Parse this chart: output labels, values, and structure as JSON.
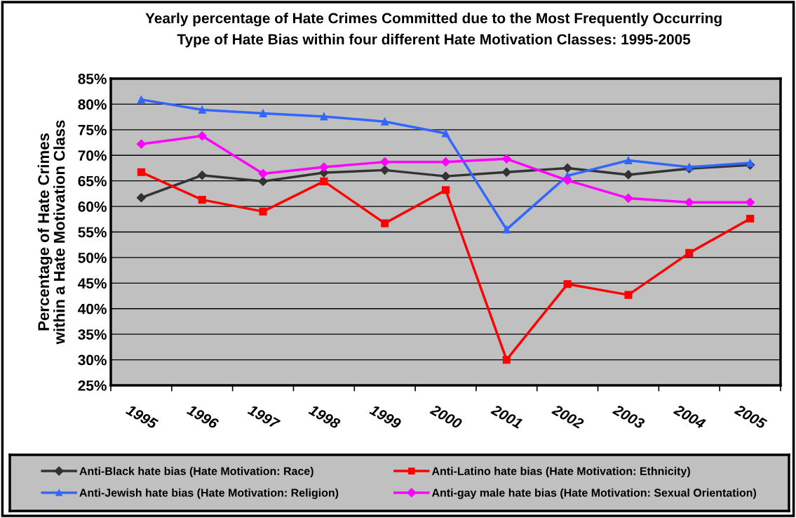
{
  "chart_data": {
    "type": "line",
    "title": "Yearly percentage of Hate Crimes Committed due to the Most Frequently Occurring\nType of Hate Bias within four different Hate Motivation Classes: 1995-2005",
    "ylabel": "Percentage of Hate Crimes\nwithin a Hate Motivation Class",
    "categories": [
      "1995",
      "1996",
      "1997",
      "1998",
      "1999",
      "2000",
      "2001",
      "2002",
      "2003",
      "2004",
      "2005"
    ],
    "series": [
      {
        "name": "Anti-Black hate bias (Hate Motivation: Race)",
        "color": "#333333",
        "marker": "diamond",
        "values": [
          61.7,
          66.1,
          64.9,
          66.6,
          67.1,
          65.9,
          66.7,
          67.5,
          66.2,
          67.4,
          68.1
        ]
      },
      {
        "name": "Anti-Latino hate bias (Hate Motivation: Ethnicity)",
        "color": "#ff0000",
        "marker": "square",
        "values": [
          66.7,
          61.3,
          59.0,
          64.9,
          56.7,
          63.2,
          30.0,
          44.8,
          42.7,
          50.9,
          57.6
        ]
      },
      {
        "name": "Anti-Jewish hate bias (Hate Motivation: Religion)",
        "color": "#3366ff",
        "marker": "triangle",
        "values": [
          80.9,
          78.9,
          78.2,
          77.6,
          76.6,
          74.3,
          55.5,
          66.0,
          69.0,
          67.7,
          68.5
        ]
      },
      {
        "name": "Anti-gay male hate bias (Hate Motivation: Sexual Orientation)",
        "color": "#ff00ff",
        "marker": "diamond",
        "values": [
          72.2,
          73.8,
          66.4,
          67.7,
          68.7,
          68.7,
          69.3,
          65.1,
          61.6,
          60.8,
          60.8
        ]
      }
    ],
    "ylim": [
      25,
      85
    ],
    "yticks": [
      {
        "value": 25,
        "label": "25%"
      },
      {
        "value": 30,
        "label": "30%"
      },
      {
        "value": 35,
        "label": "35%"
      },
      {
        "value": 40,
        "label": "40%"
      },
      {
        "value": 45,
        "label": "45%"
      },
      {
        "value": 50,
        "label": "50%"
      },
      {
        "value": 55,
        "label": "55%"
      },
      {
        "value": 60,
        "label": "60%"
      },
      {
        "value": 65,
        "label": "65%"
      },
      {
        "value": 70,
        "label": "70%"
      },
      {
        "value": 75,
        "label": "75%"
      },
      {
        "value": 80,
        "label": "80%"
      },
      {
        "value": 85,
        "label": "85%"
      }
    ],
    "grid": "y",
    "legend": "bottom",
    "line_style": "solid"
  }
}
